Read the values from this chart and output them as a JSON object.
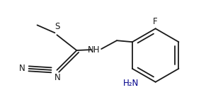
{
  "background": "#ffffff",
  "line_color": "#1a1a1a",
  "line_width": 1.3,
  "font_size": 8.5,
  "fig_width": 2.91,
  "fig_height": 1.58,
  "dpi": 100,
  "xlim": [
    0,
    291
  ],
  "ylim": [
    0,
    158
  ]
}
